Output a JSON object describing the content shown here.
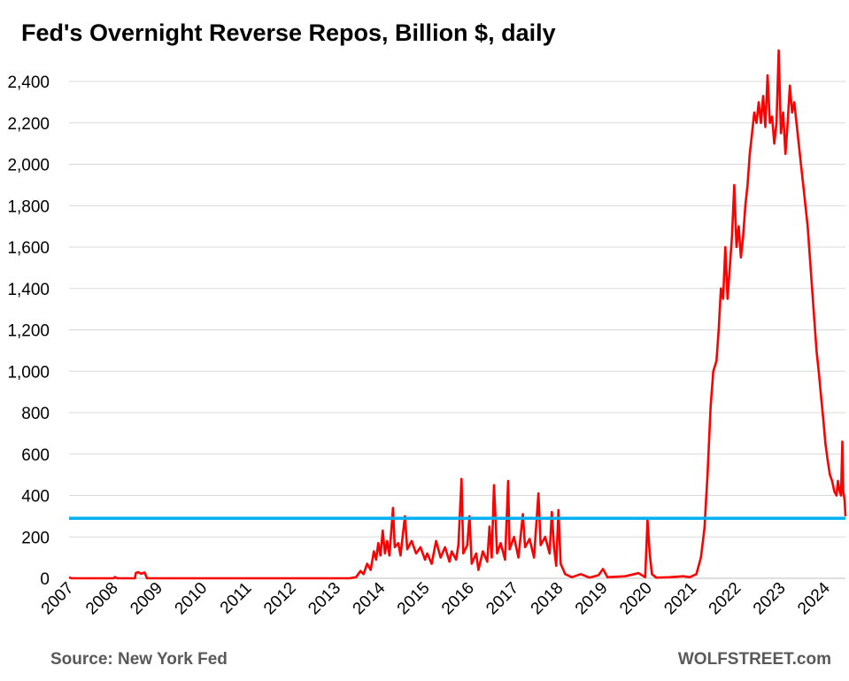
{
  "header": {
    "title": "Fed's Overnight Reverse Repos, Billion $, daily"
  },
  "footer": {
    "source": "Source: New York Fed",
    "brand": "WOLFSTREET.com"
  },
  "chart_data": {
    "type": "line",
    "title": "Fed's Overnight Reverse Repos, Billion $, daily",
    "xlabel": "",
    "ylabel": "",
    "xlim": [
      2007.0,
      2024.45
    ],
    "ylim": [
      0,
      2550
    ],
    "yticks": [
      0,
      200,
      400,
      600,
      800,
      1000,
      1200,
      1400,
      1600,
      1800,
      2000,
      2200,
      2400
    ],
    "ytick_labels": [
      "0",
      "200",
      "400",
      "600",
      "800",
      "1,000",
      "1,200",
      "1,400",
      "1,600",
      "1,800",
      "2,000",
      "2,200",
      "2,400"
    ],
    "xtick_labels": [
      "2007",
      "2008",
      "2009",
      "2010",
      "2011",
      "2012",
      "2013",
      "2014",
      "2015",
      "2016",
      "2017",
      "2018",
      "2019",
      "2020",
      "2021",
      "2022",
      "2023",
      "2024"
    ],
    "grid": "horizontal",
    "legend": "none",
    "series": [
      {
        "color": "#ff0000",
        "points": [
          [
            2007.0,
            5
          ],
          [
            2007.05,
            0
          ],
          [
            2008.0,
            0
          ],
          [
            2008.03,
            6
          ],
          [
            2008.08,
            0
          ],
          [
            2008.48,
            0
          ],
          [
            2008.5,
            25
          ],
          [
            2008.55,
            30
          ],
          [
            2008.62,
            22
          ],
          [
            2008.7,
            28
          ],
          [
            2008.75,
            0
          ],
          [
            2013.3,
            0
          ],
          [
            2013.45,
            5
          ],
          [
            2013.55,
            35
          ],
          [
            2013.62,
            20
          ],
          [
            2013.7,
            70
          ],
          [
            2013.78,
            40
          ],
          [
            2013.85,
            130
          ],
          [
            2013.9,
            90
          ],
          [
            2013.95,
            170
          ],
          [
            2014.0,
            110
          ],
          [
            2014.05,
            230
          ],
          [
            2014.1,
            120
          ],
          [
            2014.15,
            180
          ],
          [
            2014.2,
            110
          ],
          [
            2014.28,
            340
          ],
          [
            2014.32,
            150
          ],
          [
            2014.4,
            170
          ],
          [
            2014.45,
            110
          ],
          [
            2014.55,
            300
          ],
          [
            2014.6,
            140
          ],
          [
            2014.7,
            180
          ],
          [
            2014.8,
            120
          ],
          [
            2014.9,
            150
          ],
          [
            2015.0,
            90
          ],
          [
            2015.05,
            120
          ],
          [
            2015.15,
            70
          ],
          [
            2015.25,
            180
          ],
          [
            2015.35,
            100
          ],
          [
            2015.45,
            150
          ],
          [
            2015.55,
            80
          ],
          [
            2015.6,
            130
          ],
          [
            2015.7,
            90
          ],
          [
            2015.75,
            160
          ],
          [
            2015.82,
            480
          ],
          [
            2015.86,
            120
          ],
          [
            2015.95,
            160
          ],
          [
            2016.0,
            300
          ],
          [
            2016.05,
            70
          ],
          [
            2016.15,
            120
          ],
          [
            2016.2,
            40
          ],
          [
            2016.3,
            130
          ],
          [
            2016.4,
            80
          ],
          [
            2016.45,
            250
          ],
          [
            2016.5,
            100
          ],
          [
            2016.55,
            450
          ],
          [
            2016.62,
            120
          ],
          [
            2016.7,
            170
          ],
          [
            2016.8,
            90
          ],
          [
            2016.87,
            470
          ],
          [
            2016.9,
            140
          ],
          [
            2017.0,
            200
          ],
          [
            2017.1,
            100
          ],
          [
            2017.2,
            310
          ],
          [
            2017.25,
            150
          ],
          [
            2017.35,
            190
          ],
          [
            2017.45,
            100
          ],
          [
            2017.55,
            410
          ],
          [
            2017.6,
            160
          ],
          [
            2017.7,
            200
          ],
          [
            2017.8,
            120
          ],
          [
            2017.85,
            320
          ],
          [
            2017.9,
            150
          ],
          [
            2017.95,
            60
          ],
          [
            2018.0,
            330
          ],
          [
            2018.05,
            70
          ],
          [
            2018.15,
            20
          ],
          [
            2018.3,
            5
          ],
          [
            2018.5,
            20
          ],
          [
            2018.7,
            3
          ],
          [
            2018.9,
            15
          ],
          [
            2019.0,
            45
          ],
          [
            2019.1,
            5
          ],
          [
            2019.5,
            10
          ],
          [
            2019.8,
            25
          ],
          [
            2019.95,
            5
          ],
          [
            2020.0,
            280
          ],
          [
            2020.05,
            120
          ],
          [
            2020.1,
            20
          ],
          [
            2020.2,
            3
          ],
          [
            2020.5,
            5
          ],
          [
            2020.8,
            10
          ],
          [
            2020.95,
            5
          ],
          [
            2021.1,
            20
          ],
          [
            2021.2,
            100
          ],
          [
            2021.28,
            240
          ],
          [
            2021.35,
            500
          ],
          [
            2021.42,
            830
          ],
          [
            2021.48,
            1000
          ],
          [
            2021.55,
            1050
          ],
          [
            2021.6,
            1200
          ],
          [
            2021.65,
            1400
          ],
          [
            2021.7,
            1350
          ],
          [
            2021.75,
            1600
          ],
          [
            2021.8,
            1350
          ],
          [
            2021.85,
            1500
          ],
          [
            2021.9,
            1650
          ],
          [
            2021.95,
            1900
          ],
          [
            2022.0,
            1600
          ],
          [
            2022.05,
            1700
          ],
          [
            2022.1,
            1550
          ],
          [
            2022.15,
            1650
          ],
          [
            2022.2,
            1800
          ],
          [
            2022.25,
            1900
          ],
          [
            2022.3,
            2050
          ],
          [
            2022.35,
            2150
          ],
          [
            2022.4,
            2250
          ],
          [
            2022.45,
            2200
          ],
          [
            2022.5,
            2300
          ],
          [
            2022.55,
            2200
          ],
          [
            2022.6,
            2330
          ],
          [
            2022.65,
            2180
          ],
          [
            2022.7,
            2430
          ],
          [
            2022.75,
            2200
          ],
          [
            2022.8,
            2230
          ],
          [
            2022.85,
            2100
          ],
          [
            2022.9,
            2200
          ],
          [
            2022.95,
            2550
          ],
          [
            2023.0,
            2150
          ],
          [
            2023.05,
            2250
          ],
          [
            2023.1,
            2050
          ],
          [
            2023.15,
            2200
          ],
          [
            2023.2,
            2380
          ],
          [
            2023.25,
            2250
          ],
          [
            2023.3,
            2300
          ],
          [
            2023.35,
            2200
          ],
          [
            2023.4,
            2100
          ],
          [
            2023.45,
            2000
          ],
          [
            2023.5,
            1900
          ],
          [
            2023.55,
            1800
          ],
          [
            2023.6,
            1700
          ],
          [
            2023.65,
            1550
          ],
          [
            2023.7,
            1400
          ],
          [
            2023.75,
            1250
          ],
          [
            2023.8,
            1100
          ],
          [
            2023.85,
            1000
          ],
          [
            2023.9,
            880
          ],
          [
            2023.95,
            770
          ],
          [
            2024.0,
            650
          ],
          [
            2024.05,
            570
          ],
          [
            2024.1,
            500
          ],
          [
            2024.15,
            470
          ],
          [
            2024.2,
            420
          ],
          [
            2024.25,
            400
          ],
          [
            2024.28,
            470
          ],
          [
            2024.32,
            420
          ],
          [
            2024.35,
            400
          ],
          [
            2024.38,
            660
          ],
          [
            2024.4,
            420
          ],
          [
            2024.43,
            380
          ],
          [
            2024.45,
            300
          ]
        ]
      }
    ],
    "reference_line": {
      "y": 290,
      "color": "#00b0f0"
    }
  }
}
